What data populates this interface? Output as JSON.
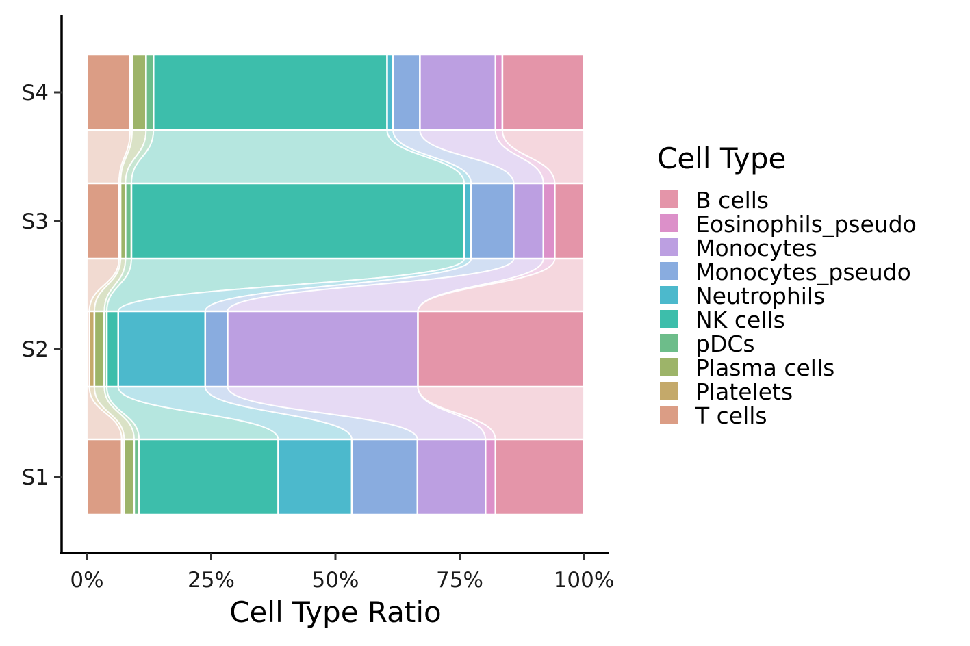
{
  "chart_data": {
    "type": "bar",
    "orientation": "horizontal",
    "stacking": "percent",
    "categories": [
      "S1",
      "S2",
      "S3",
      "S4"
    ],
    "xlabel": "Cell Type Ratio",
    "ylabel": "",
    "x_ticks": [
      "0%",
      "25%",
      "50%",
      "75%",
      "100%"
    ],
    "xlim": [
      0,
      100
    ],
    "grid": false,
    "alluvial_flows": true,
    "legend": {
      "title": "Cell Type",
      "position": "right",
      "entries": [
        "B cells",
        "Eosinophils_pseudo",
        "Monocytes",
        "Monocytes_pseudo",
        "Neutrophils",
        "NK cells",
        "pDCs",
        "Plasma cells",
        "Platelets",
        "T cells"
      ]
    },
    "stack_order": [
      "T cells",
      "Platelets",
      "Plasma cells",
      "pDCs",
      "NK cells",
      "Neutrophils",
      "Monocytes_pseudo",
      "Monocytes",
      "Eosinophils_pseudo",
      "B cells"
    ],
    "series": [
      {
        "name": "T cells",
        "color": "#DB9D85",
        "values": [
          7.0,
          0.5,
          6.5,
          8.7
        ]
      },
      {
        "name": "Platelets",
        "color": "#C4A96A",
        "values": [
          0.5,
          1.0,
          0.3,
          0.4
        ]
      },
      {
        "name": "Plasma cells",
        "color": "#9DB469",
        "values": [
          2.0,
          2.0,
          1.0,
          2.8
        ]
      },
      {
        "name": "pDCs",
        "color": "#6DBD8A",
        "values": [
          1.0,
          0.5,
          1.2,
          1.5
        ]
      },
      {
        "name": "NK cells",
        "color": "#3DBEAB",
        "values": [
          28.0,
          2.3,
          67.3,
          47.0
        ]
      },
      {
        "name": "Neutrophils",
        "color": "#4CB9CC",
        "values": [
          14.8,
          17.5,
          1.4,
          1.2
        ]
      },
      {
        "name": "Monocytes_pseudo",
        "color": "#89ACDF",
        "values": [
          13.2,
          4.5,
          8.6,
          5.4
        ]
      },
      {
        "name": "Monocytes",
        "color": "#BC9FE1",
        "values": [
          13.7,
          38.3,
          6.0,
          15.2
        ]
      },
      {
        "name": "Eosinophils_pseudo",
        "color": "#DC90C9",
        "values": [
          2.0,
          0.0,
          2.3,
          1.4
        ]
      },
      {
        "name": "B cells",
        "color": "#E495A9",
        "values": [
          17.8,
          33.4,
          5.9,
          16.4
        ]
      }
    ]
  }
}
